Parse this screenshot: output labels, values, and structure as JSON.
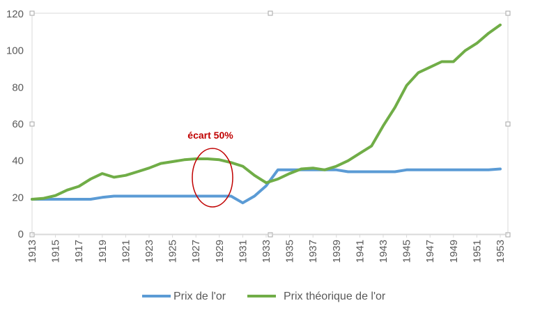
{
  "chart_data": {
    "type": "line",
    "x": [
      1913,
      1914,
      1915,
      1916,
      1917,
      1918,
      1919,
      1920,
      1921,
      1922,
      1923,
      1924,
      1925,
      1926,
      1927,
      1928,
      1929,
      1930,
      1931,
      1932,
      1933,
      1934,
      1935,
      1936,
      1937,
      1938,
      1939,
      1940,
      1941,
      1942,
      1943,
      1944,
      1945,
      1946,
      1947,
      1948,
      1949,
      1950,
      1951,
      1952,
      1953
    ],
    "x_tick_labels": [
      "1913",
      "1915",
      "1917",
      "1919",
      "1921",
      "1923",
      "1925",
      "1927",
      "1929",
      "1931",
      "1933",
      "1935",
      "1937",
      "1939",
      "1941",
      "1943",
      "1945",
      "1947",
      "1949",
      "1951",
      "1953"
    ],
    "y_tick_labels": [
      "0",
      "20",
      "40",
      "60",
      "80",
      "100",
      "120"
    ],
    "ylim": [
      0,
      120
    ],
    "series": [
      {
        "name": "Prix de l'or",
        "color": "#5B9BD5",
        "values": [
          19,
          19,
          19,
          19,
          19,
          19,
          20,
          20.7,
          20.7,
          20.7,
          20.7,
          20.7,
          20.7,
          20.7,
          20.7,
          20.7,
          20.7,
          20.7,
          17,
          20.7,
          26.3,
          35,
          35,
          35,
          35,
          35,
          35,
          34,
          34,
          34,
          34,
          34,
          35,
          35,
          35,
          35,
          35,
          35,
          35,
          35,
          35.5
        ]
      },
      {
        "name": "Prix théorique de l'or",
        "color": "#70AD47",
        "values": [
          19,
          19.5,
          21,
          24,
          26,
          30,
          33,
          31,
          32,
          34,
          36,
          38.5,
          39.5,
          40.5,
          41,
          41,
          40.5,
          39,
          37,
          32,
          28,
          30,
          33,
          35.5,
          36,
          35,
          37,
          40,
          44,
          48,
          59,
          69,
          81,
          88,
          91,
          94,
          94,
          100,
          104,
          109.5,
          114
        ]
      }
    ],
    "annotation": {
      "text": "écart 50%",
      "color": "#c00000"
    },
    "legend_position": "bottom",
    "grid": false
  }
}
